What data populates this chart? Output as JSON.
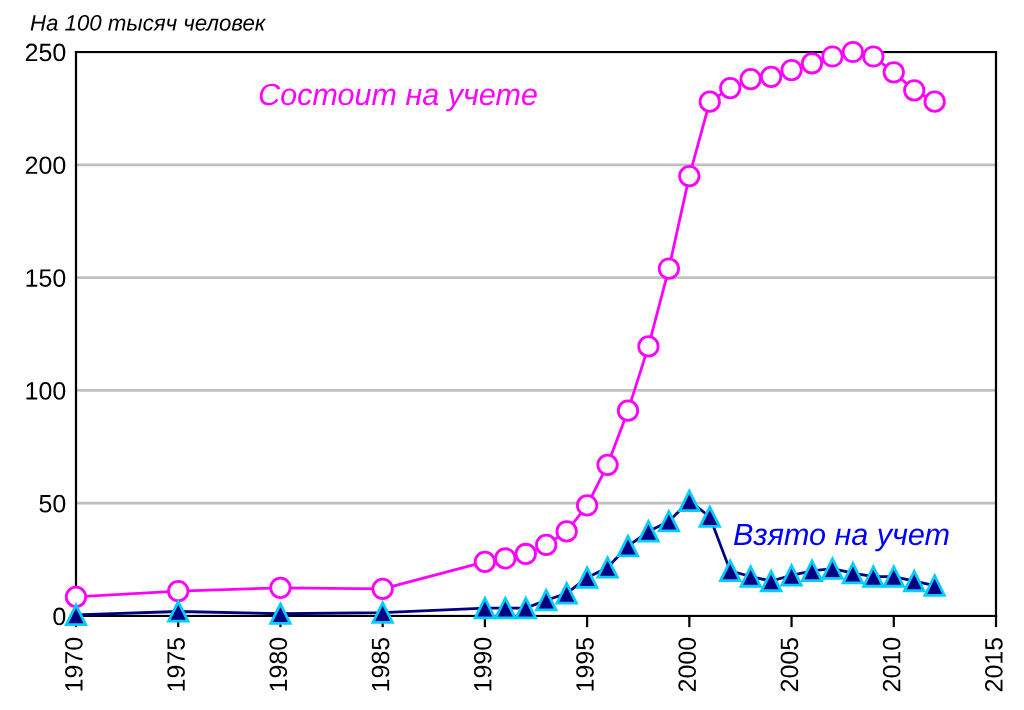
{
  "chart_data": {
    "type": "line",
    "ylabel": "На 100 тысяч человек",
    "x": [
      1970,
      1975,
      1980,
      1985,
      1990,
      1991,
      1992,
      1993,
      1994,
      1995,
      1996,
      1997,
      1998,
      1999,
      2000,
      2001,
      2002,
      2003,
      2004,
      2005,
      2006,
      2007,
      2008,
      2009,
      2010,
      2011,
      2012
    ],
    "series": [
      {
        "name": "Состоит на учете",
        "color": "#ff00ff",
        "marker": "circle",
        "values": [
          8.5,
          11,
          12.5,
          12,
          24,
          25.5,
          27.5,
          31.5,
          37.5,
          49,
          67,
          91,
          119.5,
          154,
          195,
          228,
          234,
          238,
          239,
          242,
          245,
          248,
          250,
          248,
          241,
          233,
          228
        ]
      },
      {
        "name": "Взято на учет",
        "color": "#000080",
        "marker": "triangle",
        "values": [
          0.5,
          2,
          1,
          1.5,
          3.5,
          3.5,
          3.5,
          7,
          10,
          17,
          21.5,
          31,
          37.5,
          42,
          51,
          44,
          20,
          17.5,
          15.5,
          18,
          20,
          21,
          19,
          17.5,
          17.5,
          15.5,
          13.5
        ]
      }
    ],
    "xlim": [
      1970,
      2015
    ],
    "xticks": [
      1970,
      1975,
      1980,
      1985,
      1990,
      1995,
      2000,
      2005,
      2010,
      2015
    ],
    "ylim": [
      0,
      250
    ],
    "yticks": [
      0,
      50,
      100,
      150,
      200,
      250
    ],
    "grid": "y",
    "legend": false
  }
}
